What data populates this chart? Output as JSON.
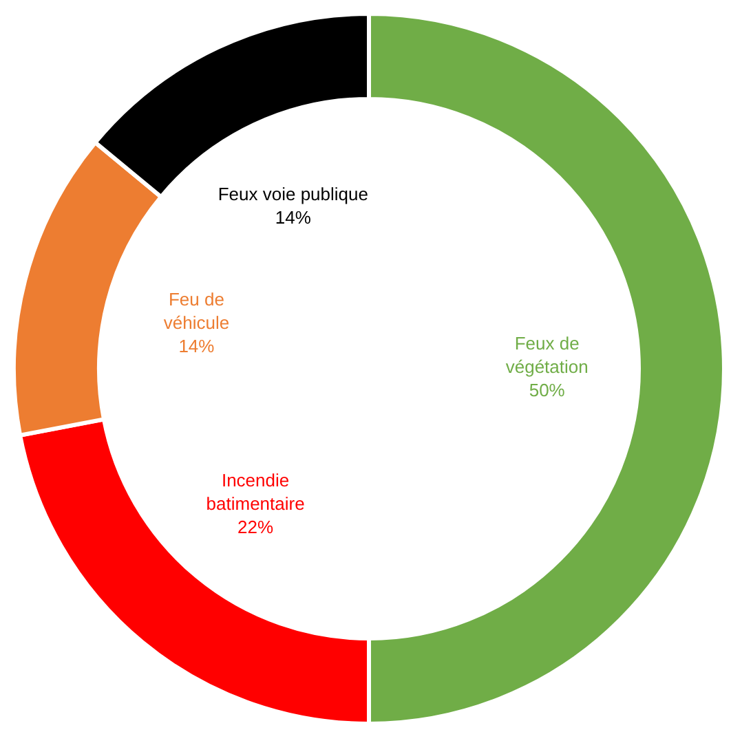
{
  "chart_data": {
    "type": "donut",
    "categories": [
      "Feux de végétation",
      "Incendie batimentaire",
      "Feu de véhicule",
      "Feux voie publique"
    ],
    "values": [
      50,
      22,
      14,
      14
    ],
    "value_labels": [
      "50%",
      "22%",
      "14%",
      "14%"
    ],
    "colors": [
      "#70ad47",
      "#ff0000",
      "#ed7d31",
      "#000000"
    ],
    "legend": false
  }
}
